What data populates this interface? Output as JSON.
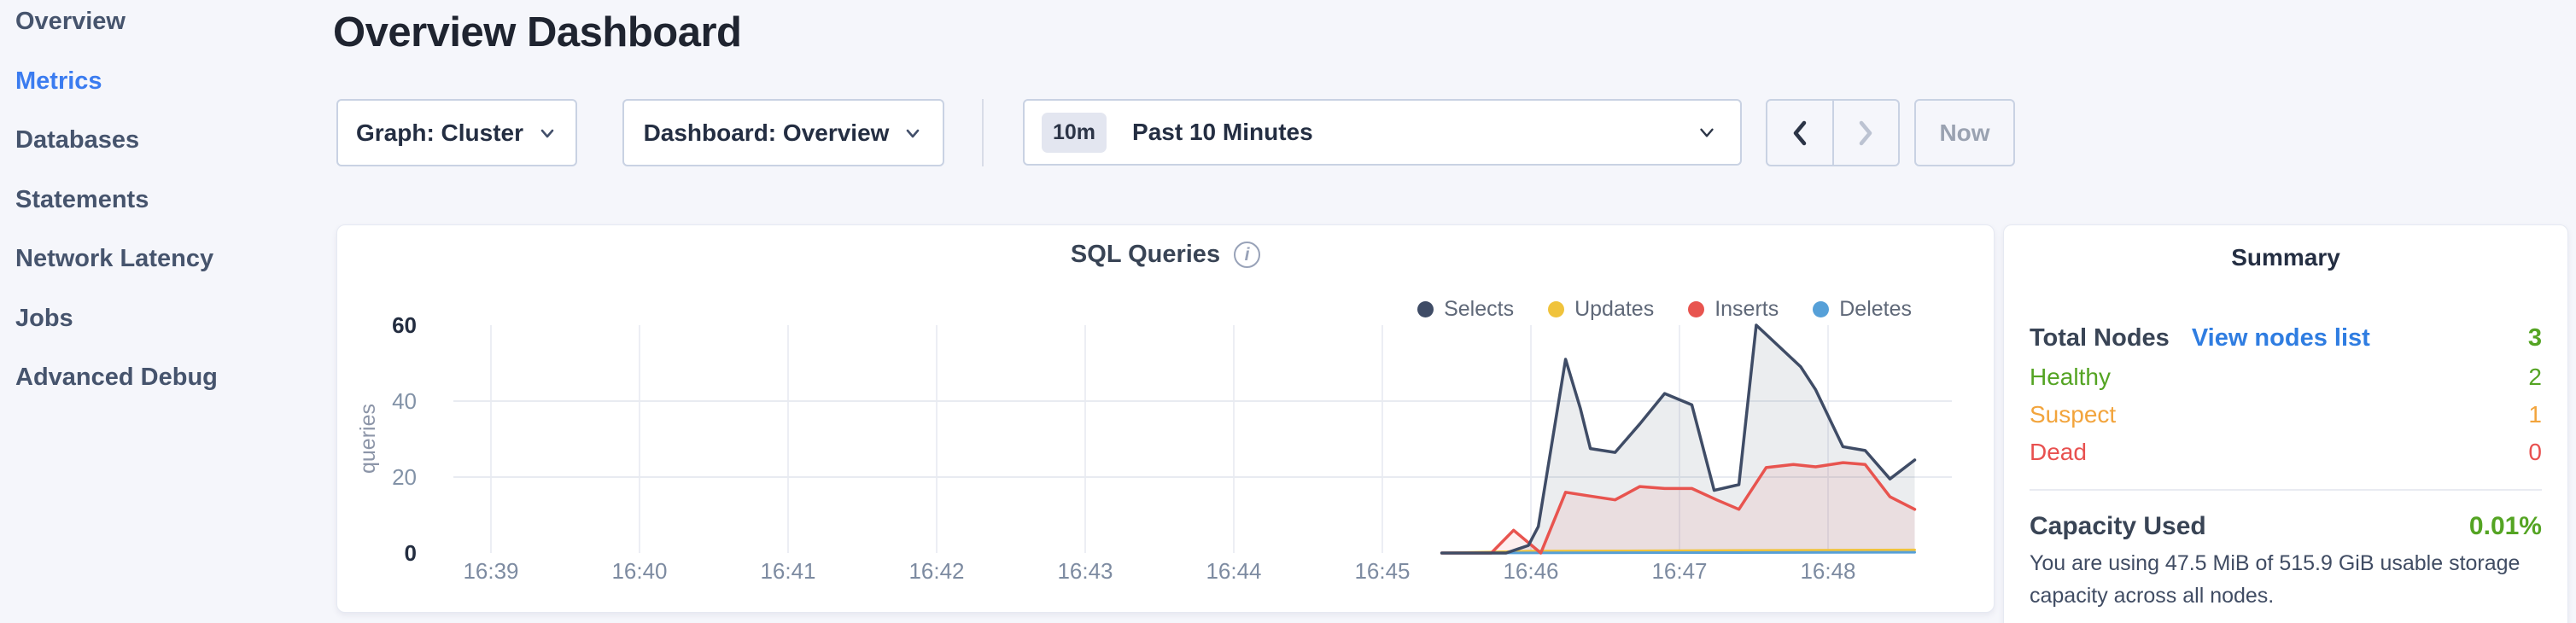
{
  "sidebar": {
    "items": [
      {
        "label": "Overview",
        "active": false
      },
      {
        "label": "Metrics",
        "active": true
      },
      {
        "label": "Databases",
        "active": false
      },
      {
        "label": "Statements",
        "active": false
      },
      {
        "label": "Network Latency",
        "active": false
      },
      {
        "label": "Jobs",
        "active": false
      },
      {
        "label": "Advanced Debug",
        "active": false
      }
    ]
  },
  "header": {
    "title": "Overview Dashboard"
  },
  "toolbar": {
    "graph_dropdown_label": "Graph: Cluster",
    "dashboard_dropdown_label": "Dashboard: Overview",
    "time_badge": "10m",
    "time_range_label": "Past 10 Minutes",
    "now_label": "Now"
  },
  "chart_data": {
    "type": "area",
    "title": "SQL Queries",
    "ylabel": "queries",
    "ylim": [
      0,
      60
    ],
    "y_ticks": [
      60,
      40,
      20,
      0
    ],
    "x_ticks": [
      "16:39",
      "16:40",
      "16:41",
      "16:42",
      "16:43",
      "16:44",
      "16:45",
      "16:46",
      "16:47",
      "16:48"
    ],
    "x_unit": "seconds since 16:39:00",
    "grid": true,
    "legend_position": "top-right",
    "series": [
      {
        "name": "Selects",
        "color": "#3f4c66",
        "fill": "rgba(63,76,102,0.10)",
        "points": [
          [
            384,
            0
          ],
          [
            410,
            0
          ],
          [
            419,
            2
          ],
          [
            423,
            7
          ],
          [
            434,
            51
          ],
          [
            440,
            38
          ],
          [
            444,
            27.5
          ],
          [
            454,
            26.5
          ],
          [
            464,
            34
          ],
          [
            474,
            42
          ],
          [
            485,
            39
          ],
          [
            494,
            16.5
          ],
          [
            504,
            18
          ],
          [
            511,
            60
          ],
          [
            529,
            49
          ],
          [
            535,
            43
          ],
          [
            546,
            28
          ],
          [
            555,
            27
          ],
          [
            565,
            19.5
          ],
          [
            575,
            24.5
          ]
        ]
      },
      {
        "name": "Updates",
        "color": "#f0c33c",
        "fill": "none",
        "points": [
          [
            384,
            0
          ],
          [
            420,
            0.5
          ],
          [
            575,
            0.8
          ]
        ]
      },
      {
        "name": "Inserts",
        "color": "#e8544f",
        "fill": "rgba(232,80,76,0.09)",
        "points": [
          [
            384,
            0
          ],
          [
            404,
            0
          ],
          [
            413,
            6
          ],
          [
            424,
            0
          ],
          [
            434,
            16
          ],
          [
            444,
            15
          ],
          [
            454,
            14
          ],
          [
            464,
            17.5
          ],
          [
            474,
            17
          ],
          [
            485,
            17
          ],
          [
            495,
            14
          ],
          [
            504,
            11.5
          ],
          [
            515,
            22.5
          ],
          [
            526,
            23.3
          ],
          [
            535,
            22.7
          ],
          [
            546,
            23.8
          ],
          [
            555,
            23.3
          ],
          [
            565,
            14.8
          ],
          [
            575,
            11.5
          ]
        ]
      },
      {
        "name": "Deletes",
        "color": "#56a0d8",
        "fill": "none",
        "points": [
          [
            384,
            0
          ],
          [
            575,
            0.2
          ]
        ]
      }
    ]
  },
  "summary": {
    "title": "Summary",
    "total_nodes_label": "Total Nodes",
    "view_nodes_link": "View nodes list",
    "total_nodes_value": "3",
    "total_nodes_color": "#54a423",
    "rows": [
      {
        "label": "Healthy",
        "value": "2",
        "color": "#54a423"
      },
      {
        "label": "Suspect",
        "value": "1",
        "color": "#f2a43c"
      },
      {
        "label": "Dead",
        "value": "0",
        "color": "#e8504f"
      }
    ],
    "capacity_label": "Capacity Used",
    "capacity_value": "0.01%",
    "capacity_description": "You are using 47.5 MiB of 515.9 GiB usable storage capacity across all nodes."
  }
}
